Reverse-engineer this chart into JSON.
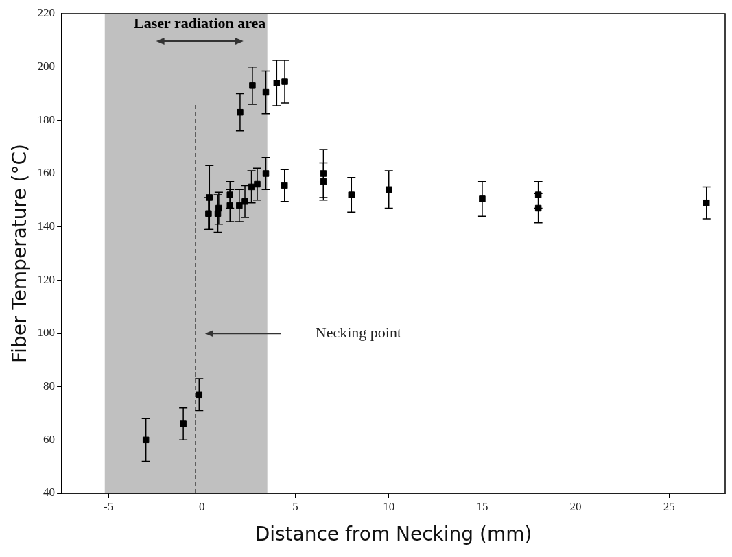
{
  "chart_data": {
    "type": "scatter",
    "xlabel": "Distance from Necking (mm)",
    "ylabel": "Fiber Temperature (°C)",
    "xlim": [
      -7.5,
      28
    ],
    "xticks": [
      -5,
      0,
      5,
      10,
      15,
      20,
      25
    ],
    "ylim": [
      40,
      220
    ],
    "yticks": [
      40,
      60,
      80,
      100,
      120,
      140,
      160,
      180,
      200,
      220
    ],
    "grid": false,
    "legend": false,
    "marker": "square",
    "series": [
      {
        "color": "#000000",
        "x": [
          -3,
          -1,
          -0.15,
          0.35,
          0.4,
          0.85,
          0.9,
          1.5,
          1.5,
          2.0,
          2.3,
          2.65,
          2.96,
          3.42,
          4.42,
          2.04,
          2.7,
          3.42,
          4.0,
          4.43,
          6.5,
          6.5,
          8,
          10,
          15,
          18,
          18,
          27
        ],
        "values": [
          60,
          66,
          77,
          145,
          151,
          145,
          147,
          152,
          148,
          148,
          149.5,
          155,
          156,
          160,
          155.5,
          183,
          193,
          190.5,
          194,
          194.5,
          160,
          157,
          152,
          154,
          150.5,
          152,
          147,
          149
        ],
        "errors": [
          8,
          6,
          6,
          6,
          12,
          7,
          6,
          5,
          6,
          6,
          6,
          6,
          6,
          6,
          6,
          7,
          7,
          8,
          8.5,
          8,
          9,
          7,
          6.5,
          7,
          6.5,
          5,
          5.5,
          6
        ]
      }
    ],
    "ref_lines": [
      {
        "axis": "x",
        "value": -0.35,
        "line_style": "dashed",
        "color": "#555555"
      }
    ],
    "bands": [
      {
        "axis": "x",
        "from": -5.2,
        "to": 3.5,
        "label": "Laser radiation area",
        "color": "#c0c0c0"
      }
    ],
    "annotations": [
      "Necking point"
    ]
  }
}
